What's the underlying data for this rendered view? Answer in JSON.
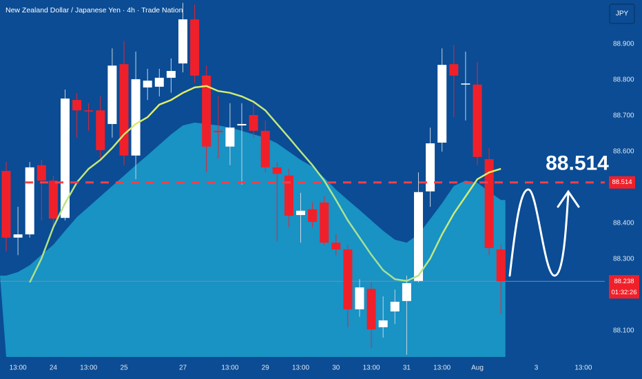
{
  "chart_data": {
    "type": "candlestick",
    "title": "New Zealand Dollar / Japanese Yen · 4h · Trade Nation",
    "currency": "JPY",
    "categories": [
      null,
      "13:00",
      null,
      null,
      "24",
      null,
      null,
      "13:00",
      null,
      null,
      "25",
      null,
      null,
      null,
      null,
      "27",
      null,
      null,
      null,
      "13:00",
      null,
      null,
      "29",
      null,
      null,
      "13:00",
      null,
      null,
      "30",
      null,
      null,
      "13:00",
      null,
      null,
      "31",
      null,
      null,
      "13:00",
      null,
      null,
      "Aug",
      null,
      null,
      null,
      null,
      "3",
      null,
      null,
      null,
      "13:00",
      null
    ],
    "open": [
      88.546,
      88.36,
      88.369,
      88.562,
      88.519,
      88.415,
      88.744,
      88.715,
      88.715,
      88.677,
      88.844,
      88.589,
      88.779,
      88.781,
      88.806,
      88.846,
      88.969,
      88.812,
      88.658,
      88.614,
      88.673,
      88.702,
      88.658,
      88.556,
      88.533,
      88.423,
      88.439,
      88.458,
      88.346,
      88.327,
      88.16,
      88.217,
      88.11,
      88.154,
      88.183,
      88.239,
      88.489,
      88.625,
      88.844,
      88.787,
      88.787,
      88.579,
      88.327,
      null,
      null,
      null,
      null,
      null,
      null,
      null,
      null
    ],
    "high": [
      88.571,
      88.446,
      88.571,
      88.577,
      88.533,
      88.773,
      88.764,
      88.735,
      88.754,
      88.888,
      88.908,
      88.879,
      88.831,
      88.831,
      88.86,
      89.015,
      89.01,
      88.84,
      88.754,
      88.735,
      88.735,
      88.735,
      88.687,
      88.571,
      88.552,
      88.485,
      88.458,
      88.475,
      88.369,
      88.34,
      88.244,
      88.235,
      88.196,
      88.215,
      88.254,
      88.542,
      88.667,
      88.888,
      88.898,
      88.879,
      88.85,
      88.61,
      88.34,
      null,
      null,
      null,
      null,
      null,
      null,
      null,
      null
    ],
    "low": [
      88.321,
      88.311,
      88.36,
      88.408,
      88.389,
      88.408,
      88.639,
      88.658,
      88.581,
      88.639,
      88.562,
      88.523,
      88.744,
      88.754,
      88.764,
      88.821,
      88.792,
      88.542,
      88.581,
      88.562,
      88.508,
      88.639,
      88.542,
      88.35,
      88.389,
      88.346,
      88.389,
      88.34,
      88.311,
      88.11,
      88.139,
      88.052,
      88.081,
      88.119,
      88.033,
      88.235,
      88.446,
      88.6,
      88.696,
      88.687,
      88.562,
      88.311,
      88.148,
      null,
      null,
      null,
      null,
      null,
      null,
      null,
      null
    ],
    "close": [
      88.36,
      88.369,
      88.556,
      88.519,
      88.413,
      88.748,
      88.715,
      88.712,
      88.604,
      88.84,
      88.589,
      88.802,
      88.798,
      88.806,
      88.825,
      88.969,
      88.812,
      88.614,
      88.654,
      88.667,
      88.677,
      88.658,
      88.556,
      88.538,
      88.421,
      88.435,
      88.404,
      88.346,
      88.327,
      88.16,
      88.221,
      88.104,
      88.129,
      88.181,
      88.233,
      88.487,
      88.623,
      88.842,
      88.812,
      88.79,
      88.585,
      88.331,
      88.238,
      null,
      null,
      null,
      null,
      null,
      null,
      null,
      null
    ],
    "area_values": [
      88.254,
      88.264,
      88.283,
      88.312,
      88.34,
      88.379,
      88.417,
      88.446,
      88.475,
      88.504,
      88.533,
      88.562,
      88.59,
      88.619,
      88.648,
      88.673,
      88.681,
      88.677,
      88.673,
      88.667,
      88.658,
      88.648,
      88.639,
      88.623,
      88.6,
      88.577,
      88.558,
      88.527,
      88.494,
      88.465,
      88.437,
      88.408,
      88.379,
      88.354,
      88.346,
      88.369,
      88.412,
      88.456,
      88.504,
      88.519,
      88.513,
      88.488,
      88.465,
      null,
      null,
      null,
      null,
      null,
      null,
      null,
      null
    ],
    "line_values": [
      null,
      null,
      88.235,
      88.302,
      88.389,
      88.456,
      88.514,
      88.552,
      88.577,
      88.61,
      88.648,
      88.677,
      88.696,
      88.731,
      88.744,
      88.764,
      88.779,
      88.783,
      88.769,
      88.764,
      88.754,
      88.739,
      88.715,
      88.677,
      88.639,
      88.6,
      88.562,
      88.519,
      88.465,
      88.408,
      88.36,
      88.312,
      88.269,
      88.244,
      88.239,
      88.254,
      88.302,
      88.369,
      88.427,
      88.475,
      88.523,
      88.542,
      88.552,
      null,
      null,
      null,
      null,
      null,
      null,
      null,
      null
    ],
    "up_color": "#ffffff",
    "down_color": "#f0202a",
    "area_color": "#1c9fcc",
    "line_color": "#e8f060",
    "ylim": [
      88.027,
      89.023
    ],
    "yticks": [
      {
        "value": 88.1,
        "label": "88.100"
      },
      {
        "value": 88.3,
        "label": "88.300"
      },
      {
        "value": 88.4,
        "label": "88.400"
      },
      {
        "value": 88.6,
        "label": "88.600"
      },
      {
        "value": 88.7,
        "label": "88.700"
      },
      {
        "value": 88.8,
        "label": "88.800"
      },
      {
        "value": 88.9,
        "label": "88.900"
      }
    ],
    "target": 88.514,
    "last_price": 88.238,
    "countdown": "01:32:26"
  }
}
